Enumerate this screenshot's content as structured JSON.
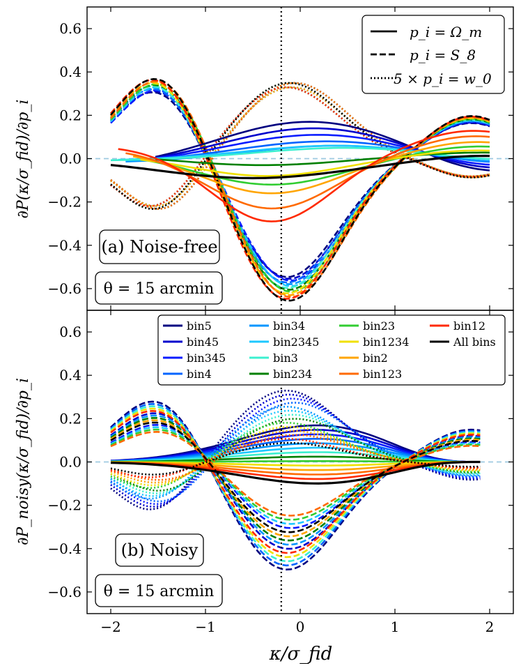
{
  "chart_data": {
    "type": "line",
    "xlabel": "κ/σ_fid",
    "x_ticks": [
      "−2",
      "−1",
      "0",
      "1",
      "2"
    ],
    "xlim": [
      -2.25,
      2.25
    ],
    "fiducial_kappa_line": -0.2,
    "panels": [
      {
        "id": "a",
        "label": "(a) Noise-free",
        "theta_label": "θ = 15 arcmin",
        "ylabel": "∂P(κ/σ_fid)/∂p_i",
        "ylim": [
          -0.7,
          0.7
        ],
        "y_ticks": [
          "−0.6",
          "−0.4",
          "−0.2",
          "0.0",
          "0.2",
          "0.4",
          "0.6"
        ],
        "style_legend": [
          {
            "label": "p_i = Ω_m",
            "style": "solid"
          },
          {
            "label": "p_i = S_8",
            "style": "dashed"
          },
          {
            "label": "5 × p_i = w_0",
            "style": "dotted"
          }
        ],
        "omega_m": [
          {
            "bin": "bin5",
            "amp": 0.22,
            "center": 0.1,
            "width": 1.0,
            "offset": -0.05
          },
          {
            "bin": "bin45",
            "amp": 0.18,
            "center": 0.15,
            "width": 1.0,
            "offset": -0.04
          },
          {
            "bin": "bin345",
            "amp": 0.14,
            "center": 0.2,
            "width": 1.0,
            "offset": -0.03
          },
          {
            "bin": "bin4",
            "amp": 0.1,
            "center": 0.3,
            "width": 1.0,
            "offset": -0.02
          },
          {
            "bin": "bin34",
            "amp": 0.08,
            "center": 0.4,
            "width": 1.0,
            "offset": -0.02
          },
          {
            "bin": "bin2345",
            "amp": 0.07,
            "center": 0.4,
            "width": 1.0,
            "offset": -0.01
          },
          {
            "bin": "bin3",
            "amp": 0.06,
            "center": 0.5,
            "width": 1.0,
            "offset": -0.01
          },
          {
            "bin": "bin234",
            "amp": -0.05,
            "center": -0.4,
            "width": 0.9,
            "offset": 0.02
          },
          {
            "bin": "bin23",
            "amp": -0.15,
            "center": -0.3,
            "width": 0.8,
            "offset": 0.03
          },
          {
            "bin": "bin1234",
            "amp": -0.1,
            "center": -0.35,
            "width": 0.8,
            "offset": 0.02
          },
          {
            "bin": "bin2",
            "amp": -0.2,
            "center": -0.3,
            "width": 0.75,
            "offset": 0.04
          },
          {
            "bin": "bin123",
            "amp": -0.28,
            "center": -0.3,
            "width": 0.7,
            "offset": 0.05
          },
          {
            "bin": "bin12",
            "amp": -0.35,
            "center": -0.3,
            "width": 0.65,
            "offset": 0.06
          },
          {
            "bin": "All bins",
            "amp": -0.09,
            "center": -0.5,
            "width": 1.0,
            "offset": 0.0
          }
        ],
        "s8_amplitude_range": [
          0.55,
          0.66
        ],
        "w0_amplitude_range": [
          0.33,
          0.37
        ]
      },
      {
        "id": "b",
        "label": "(b) Noisy",
        "theta_label": "θ = 15 arcmin",
        "ylabel": "∂P_noisy(κ/σ_fid)/∂p_i",
        "ylim": [
          -0.7,
          0.7
        ],
        "y_ticks": [
          "−0.6",
          "−0.4",
          "−0.2",
          "0.0",
          "0.2",
          "0.4",
          "0.6"
        ],
        "bin_legend": [
          {
            "bin": "bin5",
            "color": "#000080"
          },
          {
            "bin": "bin45",
            "color": "#0000cc"
          },
          {
            "bin": "bin345",
            "color": "#0a1cff"
          },
          {
            "bin": "bin4",
            "color": "#0064ff"
          },
          {
            "bin": "bin34",
            "color": "#0096ff"
          },
          {
            "bin": "bin2345",
            "color": "#1ec8ff"
          },
          {
            "bin": "bin3",
            "color": "#3cf0d0"
          },
          {
            "bin": "bin234",
            "color": "#008000"
          },
          {
            "bin": "bin23",
            "color": "#32cd32"
          },
          {
            "bin": "bin1234",
            "color": "#f0e000"
          },
          {
            "bin": "bin2",
            "color": "#ffa500"
          },
          {
            "bin": "bin123",
            "color": "#ff6a00"
          },
          {
            "bin": "bin12",
            "color": "#ff2a00"
          },
          {
            "bin": "All bins",
            "color": "#000000"
          }
        ],
        "omega_m_amplitude_range": [
          -0.1,
          0.17
        ],
        "s8_amplitude_range": [
          0.23,
          0.5
        ],
        "w0_amplitude_range": [
          0.08,
          0.3
        ]
      }
    ]
  }
}
